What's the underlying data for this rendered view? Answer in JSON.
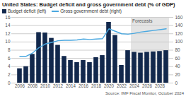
{
  "chart_data": {
    "type": "bar",
    "title": "United States: Budget deficit and gross government debt (% of GDP)",
    "categories": [
      "2006",
      null,
      "2008",
      null,
      "2010",
      null,
      "2012",
      null,
      "2014",
      null,
      "2016",
      null,
      "2018",
      null,
      "2020",
      null,
      "2022",
      null,
      "2024",
      null,
      "2026",
      null,
      "2028",
      null
    ],
    "series": [
      {
        "name": "Budget deficit (left)",
        "type": "bar",
        "color": "#12284c",
        "values": [
          3.5,
          4.0,
          7.0,
          12.3,
          12.2,
          10.9,
          9.2,
          6.5,
          5.5,
          5.0,
          5.5,
          5.0,
          6.2,
          6.7,
          14.8,
          11.6,
          4.3,
          7.9,
          7.5,
          7.3,
          7.5,
          7.6,
          7.7,
          7.9
        ]
      },
      {
        "name": "Gross government debt (right)",
        "type": "line",
        "color": "#4aa8e0",
        "axis": "y2",
        "values": [
          65,
          65,
          73,
          86,
          95,
          99,
          103,
          104,
          104,
          105,
          107,
          106,
          107,
          108,
          132,
          126,
          120,
          119,
          121,
          124,
          126,
          128,
          130,
          132
        ]
      }
    ],
    "ylim": [
      0,
      16
    ],
    "yticks": [
      0,
      2,
      4,
      6,
      8,
      10,
      12,
      14,
      16
    ],
    "y2lim": [
      0,
      160
    ],
    "y2ticks": [
      0,
      20,
      40,
      60,
      80,
      100,
      120,
      140,
      160
    ],
    "grid": true,
    "legend": "top",
    "annotations": [
      {
        "text": "Forecasts",
        "from": "2024"
      }
    ],
    "source": "Source: IMF Fiscal Monitor, October 2024"
  }
}
